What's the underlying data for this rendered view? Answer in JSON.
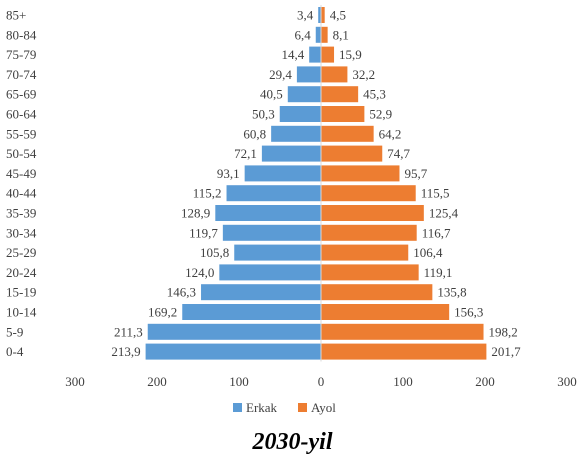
{
  "caption": "2030-yil",
  "chart_data": {
    "type": "bar",
    "orientation": "horizontal-population-pyramid",
    "categories": [
      "0-4",
      "5-9",
      "10-14",
      "15-19",
      "20-24",
      "25-29",
      "30-34",
      "35-39",
      "40-44",
      "45-49",
      "50-54",
      "55-59",
      "60-64",
      "65-69",
      "70-74",
      "75-79",
      "80-84",
      "85+"
    ],
    "series": [
      {
        "name": "Erkak",
        "color": "#5B9BD5",
        "values": [
          213.9,
          211.3,
          169.2,
          146.3,
          124.0,
          105.8,
          119.7,
          128.9,
          115.2,
          93.1,
          72.1,
          60.8,
          50.3,
          40.5,
          29.4,
          14.4,
          6.4,
          3.4
        ],
        "labels": [
          "213,9",
          "211,3",
          "169,2",
          "146,3",
          "124,0",
          "105,8",
          "119,7",
          "128,9",
          "115,2",
          "93,1",
          "72,1",
          "60,8",
          "50,3",
          "40,5",
          "29,4",
          "14,4",
          "6,4",
          "3,4"
        ]
      },
      {
        "name": "Ayol",
        "color": "#ED7D31",
        "values": [
          201.7,
          198.2,
          156.3,
          135.8,
          119.1,
          106.4,
          116.7,
          125.4,
          115.5,
          95.7,
          74.7,
          64.2,
          52.9,
          45.3,
          32.2,
          15.9,
          8.1,
          4.5
        ],
        "labels": [
          "201,7",
          "198,2",
          "156,3",
          "135,8",
          "119,1",
          "106,4",
          "116,7",
          "125,4",
          "115,5",
          "95,7",
          "74,7",
          "64,2",
          "52,9",
          "45,3",
          "32,2",
          "15,9",
          "8,1",
          "4,5"
        ]
      }
    ],
    "x_ticks": [
      "300",
      "200",
      "100",
      "0",
      "100",
      "200",
      "300"
    ],
    "xlim": [
      -300,
      300
    ],
    "legend_position": "bottom",
    "grid": false
  }
}
